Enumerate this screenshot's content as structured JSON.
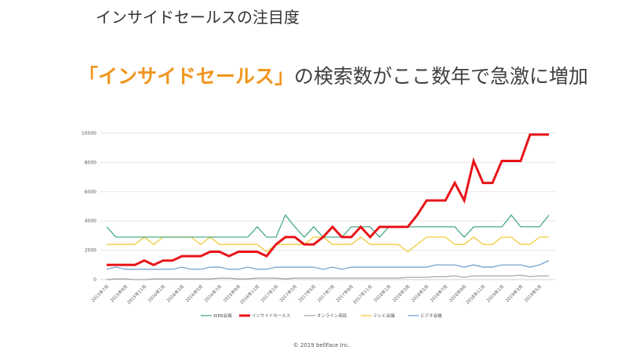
{
  "slide": {
    "title": "インサイドセールスの注目度",
    "headline_highlight": "「インサイドセールス」",
    "headline_rest": "の検索数がここ数年で急激に増加",
    "copyright": "© 2019  bellFace Inc."
  },
  "chart_data": {
    "type": "line",
    "title": "",
    "xlabel": "",
    "ylabel": "",
    "ylim": [
      0,
      10000
    ],
    "y_ticks": [
      "0",
      "2000",
      "4000",
      "6000",
      "8000",
      "10000"
    ],
    "grid": true,
    "legend_position": "bottom",
    "x": [
      "2015-07",
      "2015-08",
      "2015-09",
      "2015-10",
      "2015-11",
      "2015-12",
      "2016-01",
      "2016-02",
      "2016-03",
      "2016-04",
      "2016-05",
      "2016-06",
      "2016-07",
      "2016-08",
      "2016-09",
      "2016-10",
      "2016-11",
      "2016-12",
      "2017-01",
      "2017-02",
      "2017-03",
      "2017-04",
      "2017-05",
      "2017-06",
      "2017-07",
      "2017-08",
      "2017-09",
      "2017-10",
      "2017-11",
      "2017-12",
      "2018-01",
      "2018-02",
      "2018-03",
      "2018-04",
      "2018-05",
      "2018-06",
      "2018-07",
      "2018-08",
      "2018-09",
      "2018-10",
      "2018-11",
      "2018-12",
      "2019-01",
      "2019-02",
      "2019-03",
      "2019-04",
      "2019-05",
      "2019-06"
    ],
    "x_tick_labels": [
      "2015年7月",
      "2015年9月",
      "2015年11月",
      "2016年1月",
      "2016年3月",
      "2016年5月",
      "2016年7月",
      "2016年9月",
      "2016年11月",
      "2017年1月",
      "2017年3月",
      "2017年5月",
      "2017年7月",
      "2017年9月",
      "2017年11月",
      "2018年1月",
      "2018年3月",
      "2018年5月",
      "2018年7月",
      "2018年9月",
      "2018年11月",
      "2019年1月",
      "2019年3月",
      "2019年5月"
    ],
    "series": [
      {
        "name": "WEB会議",
        "color": "#3aa57a",
        "values": [
          3600,
          2900,
          2900,
          2900,
          2900,
          2900,
          2900,
          2900,
          2900,
          2900,
          2900,
          2900,
          2900,
          2900,
          2900,
          2900,
          3600,
          2900,
          2900,
          4400,
          3600,
          2900,
          3600,
          2900,
          2900,
          2900,
          3600,
          3600,
          3600,
          2900,
          3600,
          3600,
          3600,
          3600,
          3600,
          3600,
          3600,
          3600,
          2900,
          3600,
          3600,
          3600,
          3600,
          4400,
          3600,
          3600,
          3600,
          4400
        ]
      },
      {
        "name": "インサイドセールス",
        "color": "#e8141a",
        "values": [
          1000,
          1000,
          1000,
          1000,
          1300,
          1000,
          1300,
          1300,
          1600,
          1600,
          1600,
          1900,
          1900,
          1600,
          1900,
          1900,
          1900,
          1600,
          2400,
          2900,
          2900,
          2400,
          2400,
          2900,
          3600,
          2900,
          2900,
          3600,
          2900,
          3600,
          3600,
          3600,
          3600,
          4400,
          5400,
          5400,
          5400,
          6600,
          5400,
          8100,
          6600,
          6600,
          8100,
          8100,
          8100,
          9900,
          9900,
          9900
        ]
      },
      {
        "name": "オンライン商談",
        "color": "#a0a0a0",
        "values": [
          0,
          50,
          50,
          0,
          0,
          50,
          50,
          50,
          50,
          50,
          50,
          50,
          100,
          100,
          50,
          50,
          100,
          100,
          100,
          50,
          100,
          100,
          100,
          100,
          100,
          100,
          100,
          100,
          100,
          100,
          100,
          100,
          150,
          150,
          150,
          200,
          200,
          250,
          150,
          250,
          250,
          250,
          250,
          250,
          300,
          200,
          250,
          250
        ]
      },
      {
        "name": "テレビ会議",
        "color": "#f2c62c",
        "values": [
          2400,
          2400,
          2400,
          2400,
          2900,
          2400,
          2900,
          2900,
          2900,
          2900,
          2400,
          2900,
          2400,
          2400,
          2400,
          2400,
          2400,
          1900,
          2400,
          2400,
          2400,
          2400,
          2900,
          2900,
          2400,
          2400,
          2400,
          2900,
          2400,
          2400,
          2400,
          2400,
          1900,
          2400,
          2900,
          2900,
          2900,
          2400,
          2400,
          2900,
          2400,
          2400,
          2900,
          2900,
          2400,
          2400,
          2900,
          2900
        ]
      },
      {
        "name": "ビデオ会議",
        "color": "#6b9bc8",
        "values": [
          700,
          850,
          700,
          700,
          700,
          700,
          700,
          700,
          850,
          700,
          700,
          850,
          850,
          700,
          700,
          850,
          700,
          700,
          850,
          850,
          850,
          850,
          850,
          700,
          850,
          700,
          850,
          850,
          850,
          850,
          850,
          850,
          850,
          850,
          850,
          1000,
          1000,
          1000,
          850,
          1000,
          850,
          850,
          1000,
          1000,
          1000,
          850,
          1000,
          1300
        ]
      }
    ]
  }
}
